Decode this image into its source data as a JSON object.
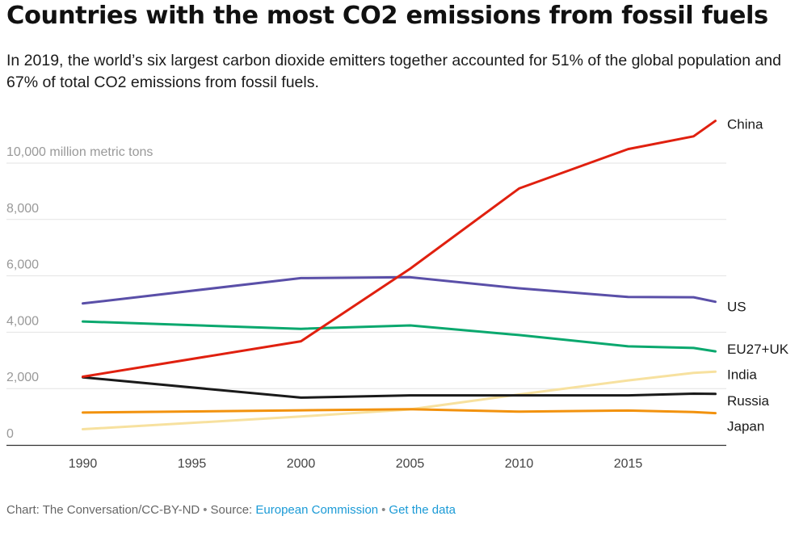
{
  "header": {
    "title": "Countries with the most CO2 emissions from fossil fuels",
    "subtitle": "In 2019, the world’s six largest carbon dioxide emitters together accounted for 51% of the global population and 67% of total CO2 emissions from fossil fuels."
  },
  "chart_data": {
    "type": "line",
    "yunit_label": "10,000 million metric tons",
    "y_tick_labels": [
      "0",
      "2,000",
      "4,000",
      "6,000",
      "8,000"
    ],
    "y_ticks": [
      0,
      2000,
      4000,
      6000,
      8000,
      10000
    ],
    "ylim": [
      0,
      10000
    ],
    "x_ticks": [
      1990,
      1995,
      2000,
      2005,
      2010,
      2015
    ],
    "xlim": [
      1990,
      2019
    ],
    "grid": true,
    "legend": "inline labels at line ends (right)",
    "series": [
      {
        "name": "China",
        "color": "#e0200f",
        "x": [
          1990,
          2000,
          2005,
          2010,
          2015,
          2018,
          2019
        ],
        "y": [
          2420,
          3680,
          6250,
          9100,
          10500,
          10950,
          11500
        ]
      },
      {
        "name": "US",
        "color": "#5a4fa8",
        "x": [
          1990,
          2000,
          2005,
          2010,
          2015,
          2018,
          2019
        ],
        "y": [
          5020,
          5920,
          5950,
          5560,
          5250,
          5240,
          5080
        ]
      },
      {
        "name": "EU27+UK",
        "color": "#0aa86e",
        "x": [
          1990,
          2000,
          2005,
          2010,
          2015,
          2018,
          2019
        ],
        "y": [
          4380,
          4120,
          4240,
          3900,
          3500,
          3440,
          3320
        ]
      },
      {
        "name": "India",
        "color": "#f7e19f",
        "x": [
          1990,
          2000,
          2005,
          2010,
          2015,
          2018,
          2019
        ],
        "y": [
          560,
          1010,
          1260,
          1790,
          2290,
          2560,
          2600
        ]
      },
      {
        "name": "Russia",
        "color": "#1a1a1a",
        "x": [
          1990,
          2000,
          2005,
          2010,
          2015,
          2018,
          2019
        ],
        "y": [
          2400,
          1680,
          1760,
          1760,
          1760,
          1820,
          1810
        ]
      },
      {
        "name": "Japan",
        "color": "#f2920e",
        "x": [
          1990,
          2000,
          2005,
          2010,
          2015,
          2018,
          2019
        ],
        "y": [
          1150,
          1230,
          1270,
          1180,
          1220,
          1170,
          1130
        ]
      }
    ]
  },
  "footer": {
    "credit": "Chart: The Conversation/CC-BY-ND",
    "source_prefix": "Source:",
    "source_link": "European Commission",
    "data_link": "Get the data"
  }
}
